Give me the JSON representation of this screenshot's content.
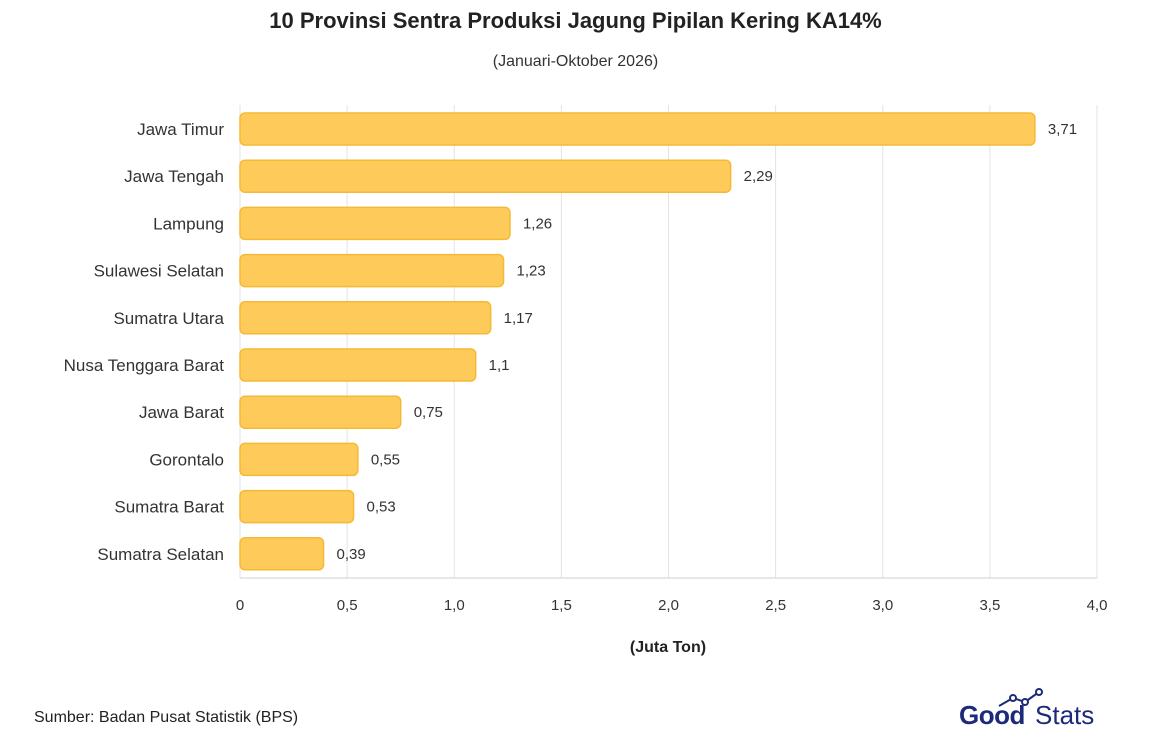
{
  "chart_data": {
    "type": "bar",
    "orientation": "horizontal",
    "title": "10 Provinsi Sentra Produksi Jagung Pipilan Kering KA14%",
    "subtitle": "(Januari-Oktober 2026)",
    "xlabel": "(Juta Ton)",
    "ylabel": "",
    "xlim": [
      0,
      4.0
    ],
    "xticks": [
      0,
      0.5,
      1.0,
      1.5,
      2.0,
      2.5,
      3.0,
      3.5,
      4.0
    ],
    "xtick_labels": [
      "0",
      "0,5",
      "1,0",
      "1,5",
      "2,0",
      "2,5",
      "3,0",
      "3,5",
      "4,0"
    ],
    "grid": "vertical",
    "bar_color": "#fecb5a",
    "bar_border_color": "#f5b935",
    "categories": [
      "Jawa Timur",
      "Jawa Tengah",
      "Lampung",
      "Sulawesi Selatan",
      "Sumatra Utara",
      "Nusa Tenggara Barat",
      "Jawa Barat",
      "Gorontalo",
      "Sumatra Barat",
      "Sumatra Selatan"
    ],
    "values": [
      3.71,
      2.29,
      1.26,
      1.23,
      1.17,
      1.1,
      0.75,
      0.55,
      0.53,
      0.39
    ],
    "value_labels": [
      "3,71",
      "2,29",
      "1,26",
      "1,23",
      "1,17",
      "1,1",
      "0,75",
      "0,55",
      "0,53",
      "0,39"
    ]
  },
  "footer": {
    "source": "Sumber: Badan Pusat Statistik (BPS)"
  },
  "logo": {
    "part1": "Good",
    "part2": "Stats",
    "color": "#1d2a7a"
  }
}
